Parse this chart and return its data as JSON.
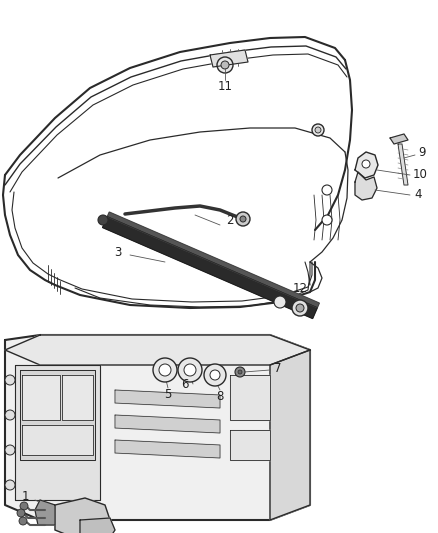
{
  "bg_color": "#ffffff",
  "line_color": "#2a2a2a",
  "label_color": "#222222",
  "fig_width": 4.38,
  "fig_height": 5.33,
  "dpi": 100
}
